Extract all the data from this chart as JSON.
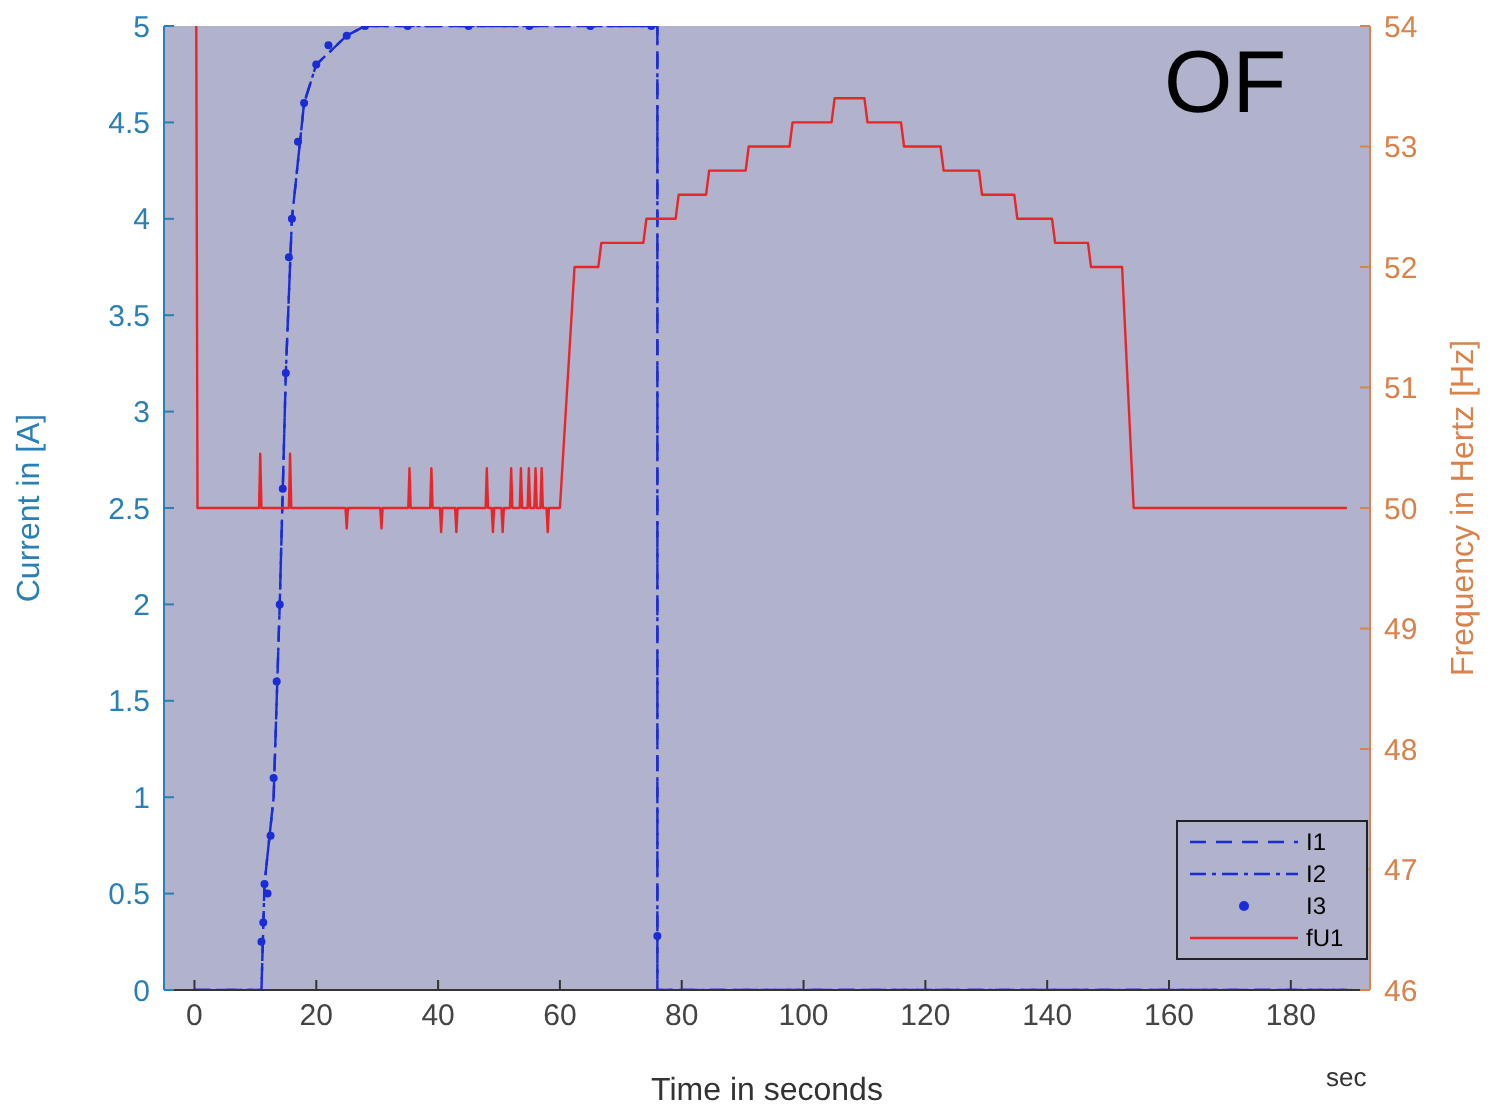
{
  "chart_data": {
    "type": "line",
    "xlabel": "Time in seconds",
    "ylabel": "Current in [A]",
    "y2label": "Frequency in Hertz [Hz]",
    "annotations": [
      "OF",
      "sec"
    ],
    "xlim": [
      -5,
      193
    ],
    "xticks": [
      0,
      20,
      40,
      60,
      80,
      100,
      120,
      140,
      160,
      180
    ],
    "ylim": [
      0,
      5
    ],
    "yticks": [
      0,
      0.5,
      1,
      1.5,
      2,
      2.5,
      3,
      3.5,
      4,
      4.5,
      5
    ],
    "y2lim": [
      46,
      54
    ],
    "y2ticks": [
      46,
      47,
      48,
      49,
      50,
      51,
      52,
      53,
      54
    ],
    "legend": "bottom right",
    "series": [
      {
        "name": "I1",
        "type": "line",
        "line_style": "dashed",
        "color": "#1a2bd8",
        "x": [
          0,
          11,
          11.5,
          13,
          14,
          15,
          16,
          18,
          20,
          25,
          28,
          76,
          76,
          190
        ],
        "values": [
          0,
          0,
          0.55,
          1.0,
          2.0,
          3.2,
          4.0,
          4.6,
          4.8,
          4.95,
          5,
          5,
          0,
          0
        ]
      },
      {
        "name": "I2",
        "type": "line",
        "line_style": "dashdot",
        "color": "#1a2bd8",
        "x": [
          0,
          11,
          11.5,
          13,
          14,
          15,
          16,
          18,
          20,
          25,
          28,
          76,
          76,
          190
        ],
        "values": [
          0,
          0,
          0.55,
          1.0,
          2.0,
          3.2,
          4.0,
          4.6,
          4.8,
          4.95,
          5,
          5,
          0,
          0
        ]
      },
      {
        "name": "I3",
        "type": "scatter",
        "marker": "circle",
        "color": "#1a2bd8",
        "x": [
          11,
          11.3,
          11.5,
          12,
          12.5,
          13,
          13.5,
          14,
          14.5,
          15,
          15.5,
          16,
          17,
          18,
          20,
          22,
          25,
          28,
          35,
          45,
          55,
          65,
          75,
          76
        ],
        "values": [
          0.25,
          0.35,
          0.55,
          0.5,
          0.8,
          1.1,
          1.6,
          2.0,
          2.6,
          3.2,
          3.8,
          4.0,
          4.4,
          4.6,
          4.8,
          4.9,
          4.95,
          5,
          5,
          5,
          5,
          5,
          5,
          0.28
        ]
      },
      {
        "name": "fU1",
        "type": "line",
        "line_style": "solid",
        "axis": "y2",
        "color": "#e8262a",
        "x": [
          0.3,
          0.5,
          10.6,
          10.8,
          11,
          15.5,
          15.7,
          15.9,
          24.8,
          25,
          25.2,
          30.5,
          30.7,
          30.9,
          35.1,
          35.3,
          35.5,
          38.7,
          38.9,
          39.1,
          40.3,
          40.5,
          40.7,
          42.8,
          43,
          43.2,
          47.8,
          48,
          48.2,
          48.8,
          49,
          49.2,
          50.4,
          50.6,
          50.8,
          51.8,
          52,
          52.2,
          53.4,
          53.6,
          53.8,
          54.7,
          54.9,
          55.1,
          55.8,
          56,
          56.2,
          56.8,
          57,
          57.2,
          57.8,
          58,
          58.2,
          60,
          62.4,
          66.3,
          66.8,
          73.7,
          74.2,
          79,
          79.5,
          84,
          84.5,
          90.5,
          91,
          97.7,
          98.2,
          104.6,
          105.1,
          110,
          110.5,
          116,
          116.5,
          122.5,
          123,
          128.8,
          129.3,
          134.6,
          135.1,
          140.8,
          141.3,
          146.7,
          147.2,
          152.3,
          154.2,
          189.2
        ],
        "values": [
          54,
          50,
          50,
          50.45,
          50,
          50,
          50.45,
          50,
          50,
          49.83,
          50,
          50,
          49.83,
          50,
          50,
          50.33,
          50,
          50,
          50.33,
          50,
          50,
          49.8,
          50,
          50,
          49.8,
          50,
          50,
          50.33,
          50,
          50,
          49.8,
          50,
          50,
          49.8,
          50,
          50,
          50.33,
          50,
          50,
          50.33,
          50,
          50,
          50.33,
          50,
          50,
          50.33,
          50,
          50,
          50.33,
          50,
          50,
          49.8,
          50,
          50,
          52,
          52,
          52.2,
          52.2,
          52.4,
          52.4,
          52.6,
          52.6,
          52.8,
          52.8,
          53,
          53,
          53.2,
          53.2,
          53.4,
          53.4,
          53.2,
          53.2,
          53,
          53,
          52.8,
          52.8,
          52.6,
          52.6,
          52.4,
          52.4,
          52.2,
          52.2,
          52,
          52,
          50,
          50
        ]
      }
    ]
  }
}
